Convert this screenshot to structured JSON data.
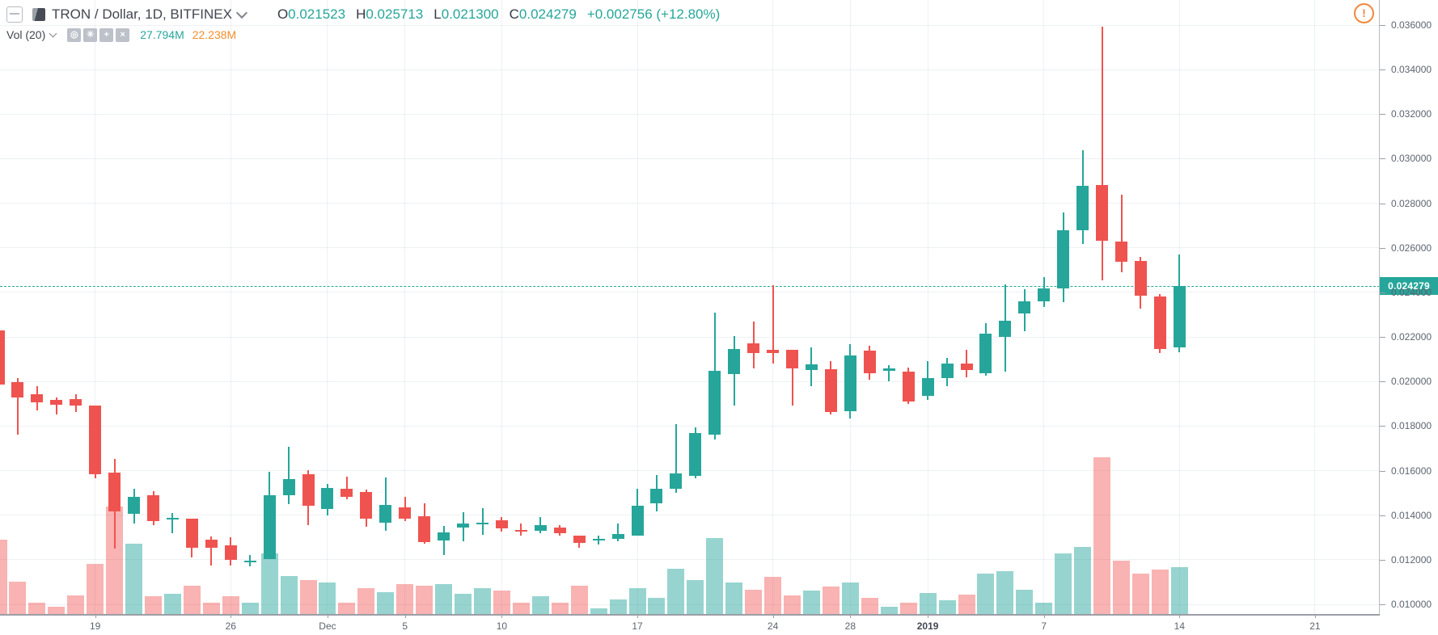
{
  "header": {
    "symbol_title": "TRON / Dollar, 1D, BITFINEX",
    "ohlc": {
      "o_label": "O",
      "o_value": "0.021523",
      "h_label": "H",
      "h_value": "0.025713",
      "l_label": "L",
      "l_value": "0.021300",
      "c_label": "C",
      "c_value": "0.024279",
      "change": "+0.002756 (+12.80%)"
    },
    "indicator": {
      "label": "Vol (20)",
      "icons": [
        "hide-icon",
        "settings-gear-icon",
        "add-icon",
        "close-icon"
      ],
      "icon_glyphs": [
        "◎",
        "✳",
        "+",
        "×"
      ],
      "value_current": "27.794M",
      "value_ma": "22.238M"
    },
    "alert_glyph": "!"
  },
  "colors": {
    "up": "#26a69a",
    "down": "#ef5350",
    "vol_up": "rgba(38,166,154,0.48)",
    "vol_down": "rgba(239,83,80,0.44)",
    "accent_teal": "#26a69a",
    "accent_orange": "#f28e2c",
    "alert_orange": "#f0883b"
  },
  "chart_data": {
    "type": "candlestick",
    "symbol": "TRON / Dollar",
    "interval": "1D",
    "exchange": "BITFINEX",
    "legend_position": "top-left",
    "grid": true,
    "current_price": 0.024279,
    "current_price_label": "0.024279",
    "volume_unit": "millions",
    "y_axis_labels": [
      "0.036000",
      "0.034000",
      "0.032000",
      "0.030000",
      "0.028000",
      "0.026000",
      "0.024000",
      "0.022000",
      "0.020000",
      "0.018000",
      "0.016000",
      "0.014000",
      "0.012000",
      "0.010000"
    ],
    "y_axis_values": [
      0.036,
      0.034,
      0.032,
      0.03,
      0.028,
      0.026,
      0.024,
      0.022,
      0.02,
      0.018,
      0.016,
      0.014,
      0.012,
      0.01
    ],
    "x_axis_labels": [
      {
        "text": "19",
        "day": 5
      },
      {
        "text": "26",
        "day": 12
      },
      {
        "text": "Dec",
        "day": 17
      },
      {
        "text": "5",
        "day": 21
      },
      {
        "text": "10",
        "day": 26
      },
      {
        "text": "17",
        "day": 33
      },
      {
        "text": "24",
        "day": 40
      },
      {
        "text": "28",
        "day": 44
      },
      {
        "text": "2019",
        "day": 48,
        "bold": true
      },
      {
        "text": "7",
        "day": 54
      },
      {
        "text": "14",
        "day": 61
      },
      {
        "text": "21",
        "day": 68
      }
    ],
    "candles": [
      {
        "date": "Nov 14",
        "o": 0.022293,
        "h": 0.022293,
        "l": 0.019864,
        "c": 0.019864,
        "vol_m": 44.1
      },
      {
        "date": "Nov 15",
        "o": 0.019973,
        "h": 0.020154,
        "l": 0.017616,
        "c": 0.019284,
        "vol_m": 19.2
      },
      {
        "date": "Nov 16",
        "o": 0.019429,
        "h": 0.019791,
        "l": 0.018703,
        "c": 0.019066,
        "vol_m": 6.7
      },
      {
        "date": "Nov 17",
        "o": 0.019175,
        "h": 0.019284,
        "l": 0.018522,
        "c": 0.018957,
        "vol_m": 4.3
      },
      {
        "date": "Nov 18",
        "o": 0.019211,
        "h": 0.019429,
        "l": 0.018631,
        "c": 0.018921,
        "vol_m": 11.0
      },
      {
        "date": "Nov 19",
        "o": 0.018921,
        "h": 0.018921,
        "l": 0.015658,
        "c": 0.015839,
        "vol_m": 29.7
      },
      {
        "date": "Nov 20",
        "o": 0.015911,
        "h": 0.016528,
        "l": 0.012503,
        "c": 0.014171,
        "vol_m": 63.7
      },
      {
        "date": "Nov 21",
        "o": 0.014062,
        "h": 0.015186,
        "l": 0.013627,
        "c": 0.014824,
        "vol_m": 41.7
      },
      {
        "date": "Nov 22",
        "o": 0.014896,
        "h": 0.015077,
        "l": 0.013555,
        "c": 0.013736,
        "vol_m": 10.5
      },
      {
        "date": "Nov 23",
        "o": 0.013808,
        "h": 0.014098,
        "l": 0.013192,
        "c": 0.013881,
        "vol_m": 12.0
      },
      {
        "date": "Nov 24",
        "o": 0.013844,
        "h": 0.013844,
        "l": 0.012104,
        "c": 0.012539,
        "vol_m": 16.8
      },
      {
        "date": "Nov 25",
        "o": 0.012901,
        "h": 0.013046,
        "l": 0.011742,
        "c": 0.012539,
        "vol_m": 6.7
      },
      {
        "date": "Nov 26",
        "o": 0.012648,
        "h": 0.01301,
        "l": 0.011742,
        "c": 0.011995,
        "vol_m": 10.5
      },
      {
        "date": "Nov 27",
        "o": 0.011886,
        "h": 0.012213,
        "l": 0.011705,
        "c": 0.011959,
        "vol_m": 6.7
      },
      {
        "date": "Nov 28",
        "o": 0.012031,
        "h": 0.015948,
        "l": 0.012031,
        "c": 0.014896,
        "vol_m": 35.9
      },
      {
        "date": "Nov 29",
        "o": 0.014896,
        "h": 0.017072,
        "l": 0.014497,
        "c": 0.015621,
        "vol_m": 22.5
      },
      {
        "date": "Nov 30",
        "o": 0.015839,
        "h": 0.016021,
        "l": 0.013555,
        "c": 0.014425,
        "vol_m": 20.1
      },
      {
        "date": "Dec 1",
        "o": 0.01428,
        "h": 0.015404,
        "l": 0.01399,
        "c": 0.015222,
        "vol_m": 18.7
      },
      {
        "date": "Dec 2",
        "o": 0.015186,
        "h": 0.01573,
        "l": 0.014715,
        "c": 0.014824,
        "vol_m": 6.7
      },
      {
        "date": "Dec 3",
        "o": 0.015041,
        "h": 0.01515,
        "l": 0.013482,
        "c": 0.013844,
        "vol_m": 15.3
      },
      {
        "date": "Dec 4",
        "o": 0.013663,
        "h": 0.015694,
        "l": 0.013301,
        "c": 0.014461,
        "vol_m": 12.9
      },
      {
        "date": "Dec 5",
        "o": 0.014352,
        "h": 0.014824,
        "l": 0.013736,
        "c": 0.013844,
        "vol_m": 17.7
      },
      {
        "date": "Dec 6",
        "o": 0.013953,
        "h": 0.014533,
        "l": 0.01272,
        "c": 0.012793,
        "vol_m": 16.8
      },
      {
        "date": "Dec 7",
        "o": 0.012865,
        "h": 0.013518,
        "l": 0.012213,
        "c": 0.013228,
        "vol_m": 17.7
      },
      {
        "date": "Dec 8",
        "o": 0.013446,
        "h": 0.014135,
        "l": 0.012829,
        "c": 0.013627,
        "vol_m": 12.0
      },
      {
        "date": "Dec 9",
        "o": 0.013591,
        "h": 0.014316,
        "l": 0.013119,
        "c": 0.013663,
        "vol_m": 15.3
      },
      {
        "date": "Dec 10",
        "o": 0.013772,
        "h": 0.013917,
        "l": 0.013264,
        "c": 0.01341,
        "vol_m": 13.9
      },
      {
        "date": "Dec 11",
        "o": 0.013337,
        "h": 0.013627,
        "l": 0.013083,
        "c": 0.013264,
        "vol_m": 6.7
      },
      {
        "date": "Dec 12",
        "o": 0.013301,
        "h": 0.013917,
        "l": 0.013192,
        "c": 0.013555,
        "vol_m": 10.5
      },
      {
        "date": "Dec 13",
        "o": 0.013446,
        "h": 0.013555,
        "l": 0.013083,
        "c": 0.013192,
        "vol_m": 6.7
      },
      {
        "date": "Dec 14",
        "o": 0.013083,
        "h": 0.013083,
        "l": 0.012539,
        "c": 0.012757,
        "vol_m": 16.8
      },
      {
        "date": "Dec 15",
        "o": 0.012865,
        "h": 0.013083,
        "l": 0.012684,
        "c": 0.012938,
        "vol_m": 3.4
      },
      {
        "date": "Dec 16",
        "o": 0.012938,
        "h": 0.013627,
        "l": 0.012829,
        "c": 0.013155,
        "vol_m": 8.6
      },
      {
        "date": "Dec 17",
        "o": 0.013083,
        "h": 0.015186,
        "l": 0.013083,
        "c": 0.014425,
        "vol_m": 15.3
      },
      {
        "date": "Dec 18",
        "o": 0.014533,
        "h": 0.015803,
        "l": 0.014171,
        "c": 0.015186,
        "vol_m": 9.6
      },
      {
        "date": "Dec 19",
        "o": 0.015186,
        "h": 0.018087,
        "l": 0.015005,
        "c": 0.015875,
        "vol_m": 26.8
      },
      {
        "date": "Dec 20",
        "o": 0.015766,
        "h": 0.017942,
        "l": 0.015658,
        "c": 0.017688,
        "vol_m": 20.1
      },
      {
        "date": "Dec 21",
        "o": 0.017616,
        "h": 0.023092,
        "l": 0.017398,
        "c": 0.020481,
        "vol_m": 45.0
      },
      {
        "date": "Dec 22",
        "o": 0.020336,
        "h": 0.02204,
        "l": 0.018921,
        "c": 0.02146,
        "vol_m": 18.7
      },
      {
        "date": "Dec 23",
        "o": 0.021714,
        "h": 0.022693,
        "l": 0.02059,
        "c": 0.021279,
        "vol_m": 14.4
      },
      {
        "date": "Dec 24",
        "o": 0.021424,
        "h": 0.024324,
        "l": 0.020808,
        "c": 0.021279,
        "vol_m": 22.0
      },
      {
        "date": "Dec 25",
        "o": 0.021424,
        "h": 0.021424,
        "l": 0.018921,
        "c": 0.02059,
        "vol_m": 11.0
      },
      {
        "date": "Dec 26",
        "o": 0.020517,
        "h": 0.021533,
        "l": 0.019791,
        "c": 0.020771,
        "vol_m": 13.9
      },
      {
        "date": "Dec 27",
        "o": 0.020554,
        "h": 0.020916,
        "l": 0.018522,
        "c": 0.018631,
        "vol_m": 16.3
      },
      {
        "date": "Dec 28",
        "o": 0.018667,
        "h": 0.021678,
        "l": 0.018341,
        "c": 0.02117,
        "vol_m": 18.7
      },
      {
        "date": "Dec 29",
        "o": 0.021388,
        "h": 0.021605,
        "l": 0.020082,
        "c": 0.020372,
        "vol_m": 9.6
      },
      {
        "date": "Dec 30",
        "o": 0.020481,
        "h": 0.020735,
        "l": 0.020009,
        "c": 0.02059,
        "vol_m": 4.3
      },
      {
        "date": "Dec 31",
        "o": 0.020445,
        "h": 0.020626,
        "l": 0.018994,
        "c": 0.019102,
        "vol_m": 6.7
      },
      {
        "date": "Jan 1",
        "o": 0.019356,
        "h": 0.020916,
        "l": 0.019175,
        "c": 0.020154,
        "vol_m": 12.5
      },
      {
        "date": "Jan 2",
        "o": 0.020154,
        "h": 0.021061,
        "l": 0.019791,
        "c": 0.020808,
        "vol_m": 8.1
      },
      {
        "date": "Jan 3",
        "o": 0.020808,
        "h": 0.021424,
        "l": 0.020191,
        "c": 0.020517,
        "vol_m": 11.5
      },
      {
        "date": "Jan 4",
        "o": 0.020372,
        "h": 0.02262,
        "l": 0.020263,
        "c": 0.022149,
        "vol_m": 24.0
      },
      {
        "date": "Jan 5",
        "o": 0.022004,
        "h": 0.02436,
        "l": 0.020445,
        "c": 0.022729,
        "vol_m": 25.4
      },
      {
        "date": "Jan 6",
        "o": 0.023055,
        "h": 0.024143,
        "l": 0.022257,
        "c": 0.023599,
        "vol_m": 14.4
      },
      {
        "date": "Jan 7",
        "o": 0.023599,
        "h": 0.024687,
        "l": 0.023345,
        "c": 0.024179,
        "vol_m": 6.7
      },
      {
        "date": "Jan 8",
        "o": 0.024179,
        "h": 0.027588,
        "l": 0.023563,
        "c": 0.02679,
        "vol_m": 35.9
      },
      {
        "date": "Jan 9",
        "o": 0.02679,
        "h": 0.03038,
        "l": 0.026174,
        "c": 0.028784,
        "vol_m": 39.8
      },
      {
        "date": "Jan 10",
        "o": 0.028821,
        "h": 0.035927,
        "l": 0.024542,
        "c": 0.026319,
        "vol_m": 93.0
      },
      {
        "date": "Jan 11",
        "o": 0.026283,
        "h": 0.028386,
        "l": 0.024905,
        "c": 0.025376,
        "vol_m": 31.6
      },
      {
        "date": "Jan 12",
        "o": 0.025412,
        "h": 0.025593,
        "l": 0.023273,
        "c": 0.023853,
        "vol_m": 24.0
      },
      {
        "date": "Jan 13",
        "o": 0.023817,
        "h": 0.023926,
        "l": 0.021279,
        "c": 0.02146,
        "vol_m": 26.4
      },
      {
        "date": "Jan 14",
        "o": 0.021523,
        "h": 0.025713,
        "l": 0.0213,
        "c": 0.024279,
        "vol_m": 27.794
      }
    ]
  }
}
